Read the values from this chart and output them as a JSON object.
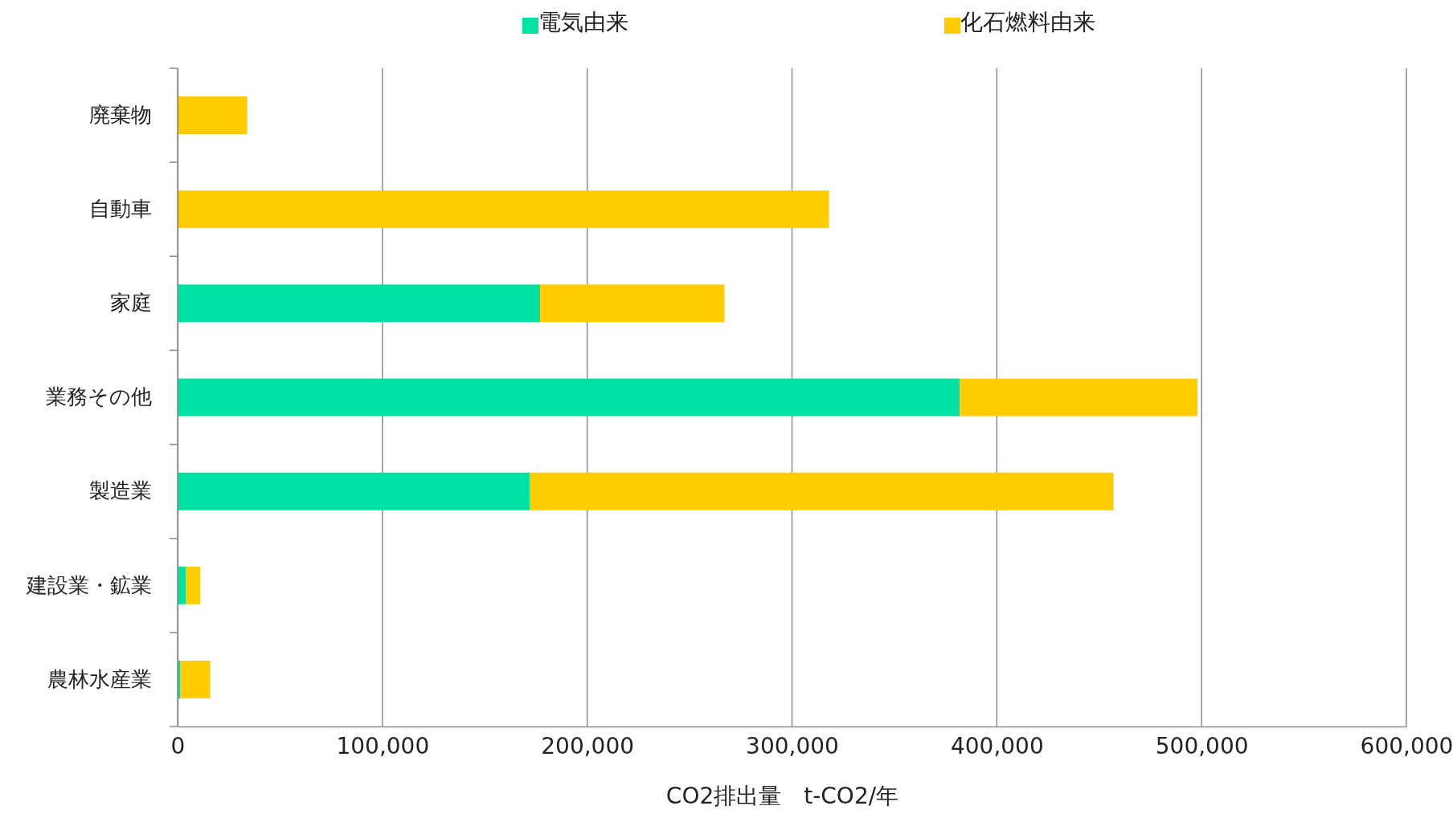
{
  "chart_data": {
    "type": "bar",
    "orientation": "horizontal",
    "stacked": true,
    "xlabel": "CO2排出量　t-CO2/年",
    "categories": [
      "廃棄物",
      "自動車",
      "家庭",
      "業務その他",
      "製造業",
      "建設業・鉱業",
      "農林水産業"
    ],
    "series": [
      {
        "name": "電気由来",
        "color": "#00e2a4",
        "values": [
          0,
          0,
          177000,
          382000,
          172000,
          4000,
          1400
        ]
      },
      {
        "name": "化石燃料由来",
        "color": "#ffcc00",
        "values": [
          34000,
          318000,
          90000,
          116000,
          285000,
          7000,
          14500
        ]
      }
    ],
    "xlim": [
      0,
      600000
    ],
    "xticks": [
      {
        "value": 0,
        "label": "0"
      },
      {
        "value": 100000,
        "label": "100,000"
      },
      {
        "value": 200000,
        "label": "200,000"
      },
      {
        "value": 300000,
        "label": "300,000"
      },
      {
        "value": 400000,
        "label": "400,000"
      },
      {
        "value": 500000,
        "label": "500,000"
      },
      {
        "value": 600000,
        "label": "600,000"
      }
    ],
    "grid": "x",
    "legend": "top"
  }
}
